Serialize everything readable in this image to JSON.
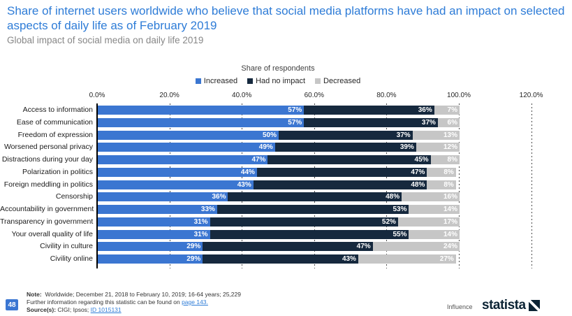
{
  "header": {
    "title": "Share of internet users worldwide who believe that social media platforms have had an impact on selected aspects of daily life as of February 2019",
    "subtitle": "Global impact of social media on daily life 2019"
  },
  "chart_data": {
    "type": "bar",
    "orientation": "horizontal",
    "stacked": true,
    "axis_title": "Share of respondents",
    "xlim": [
      0,
      120
    ],
    "x_ticks": [
      "0.0%",
      "20.0%",
      "40.0%",
      "60.0%",
      "80.0%",
      "100.0%",
      "120.0%"
    ],
    "grid": "vertical-dashed",
    "legend_position": "top-center",
    "value_suffix": "%",
    "categories": [
      "Access to information",
      "Ease of communication",
      "Freedom of expression",
      "Worsened personal privacy",
      "Distractions during your day",
      "Polarization in politics",
      "Foreign meddling in politics",
      "Censorship",
      "Accountability in government",
      "Transparency in government",
      "Your overall quality of life",
      "Civility in culture",
      "Civility online"
    ],
    "series": [
      {
        "name": "Increased",
        "color": "#3B76D1",
        "values": [
          57,
          57,
          50,
          49,
          47,
          44,
          43,
          36,
          33,
          31,
          31,
          29,
          29
        ]
      },
      {
        "name": "Had no impact",
        "color": "#16293E",
        "values": [
          36,
          37,
          37,
          39,
          45,
          47,
          48,
          48,
          53,
          52,
          55,
          47,
          43
        ]
      },
      {
        "name": "Decreased",
        "color": "#C6C6C6",
        "values": [
          7,
          6,
          13,
          12,
          8,
          8,
          8,
          16,
          14,
          17,
          14,
          24,
          27
        ]
      }
    ]
  },
  "colors": {
    "title_blue": "#2E7CD7",
    "link_blue": "#2E7CD7",
    "page_box_blue": "#3A76D2",
    "brand_navy": "#0C2435"
  },
  "footer": {
    "page_number": "48",
    "note_label": "Note:",
    "note_text": "Worldwide; December 21, 2018 to February 10, 2019; 16-64 years; 25,229",
    "further_text": "Further information regarding this statistic can be found on",
    "further_link": "page 143.",
    "source_label": "Source(s):",
    "source_text": "CIGI; Ipsos;",
    "source_link": "ID 1015131",
    "brand_left": "Influence",
    "brand_word": "statista"
  }
}
